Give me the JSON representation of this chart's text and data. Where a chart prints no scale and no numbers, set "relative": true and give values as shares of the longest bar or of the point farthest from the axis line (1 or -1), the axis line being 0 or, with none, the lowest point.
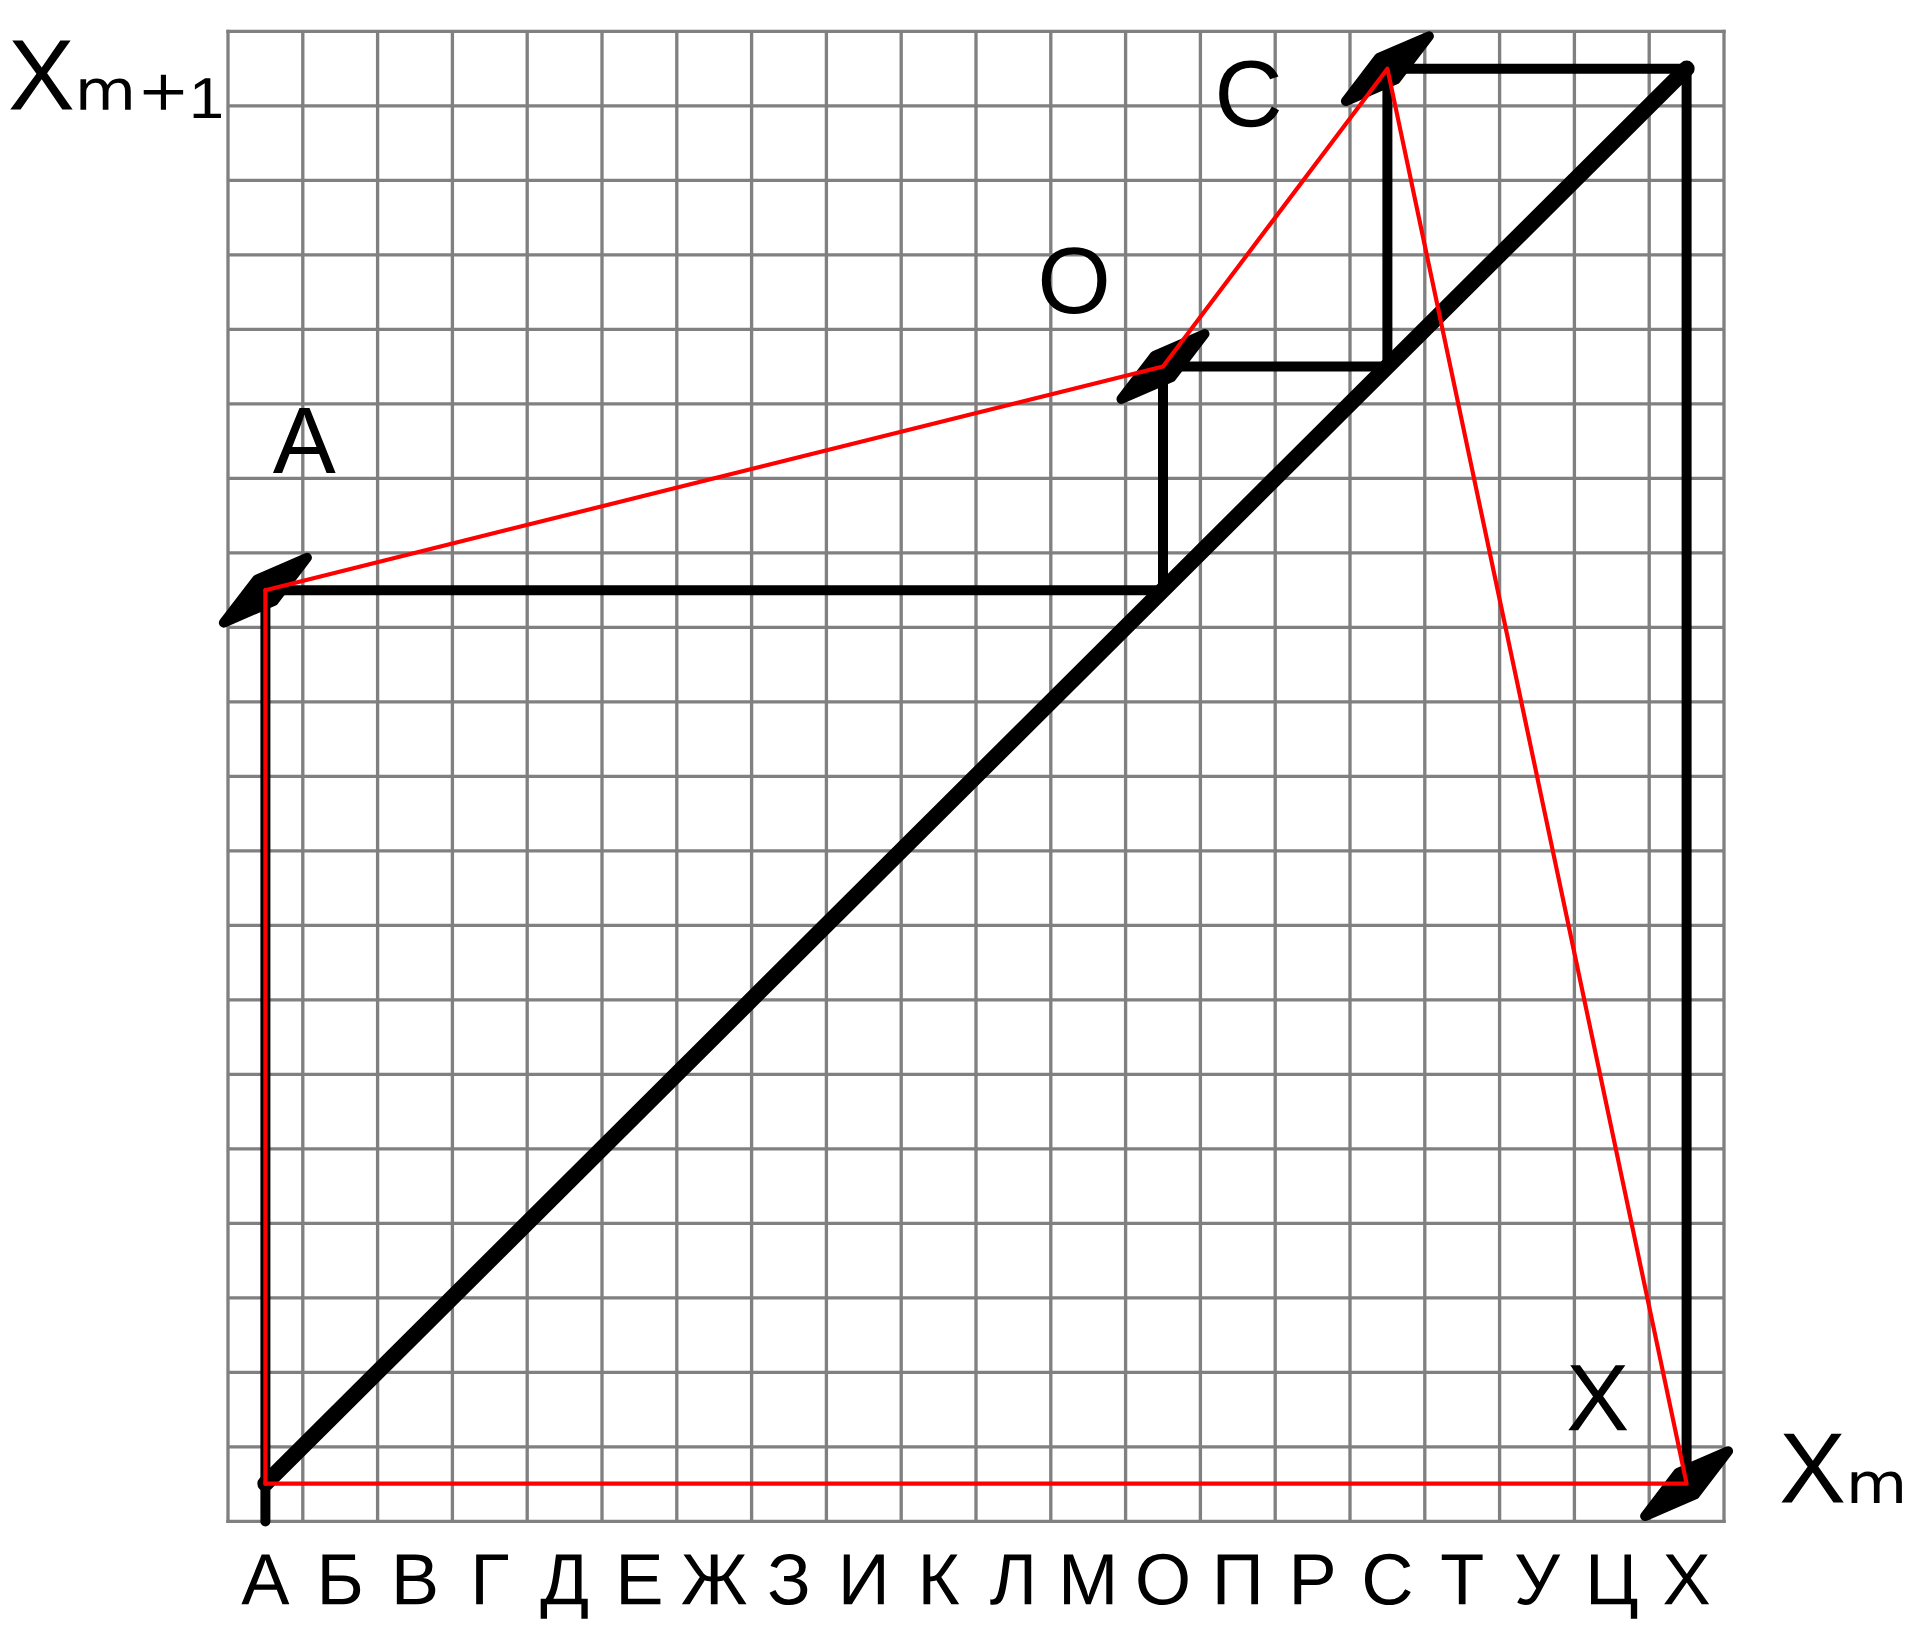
{
  "chart_data": {
    "type": "line",
    "relative": true,
    "xlabel": "Xₘ",
    "ylabel": "Xₘ₊₁",
    "grid": true,
    "categories": [
      "А",
      "Б",
      "В",
      "Г",
      "Д",
      "Е",
      "Ж",
      "З",
      "И",
      "К",
      "Л",
      "М",
      "О",
      "П",
      "Р",
      "С",
      "Т",
      "У",
      "Ц",
      "Х"
    ],
    "series": [
      {
        "color": "#000000",
        "x": [
          "А",
          "Х"
        ],
        "values": [
          0.026,
          1
        ]
      },
      {
        "color": "#000000",
        "x": [
          "А",
          "А",
          "О",
          "О",
          "С",
          "С",
          "Х",
          "Х"
        ],
        "values": [
          0,
          0.641,
          0.641,
          0.795,
          0.795,
          1,
          1,
          0.026
        ]
      },
      {
        "type": "scatter",
        "marker": "diamond",
        "color": "#000000",
        "x": [
          "А",
          "О",
          "С",
          "Х"
        ],
        "values": [
          0.641,
          0.795,
          1,
          0.026
        ]
      },
      {
        "color": "#ff0000",
        "x": [
          "А",
          "О",
          "С",
          "Х",
          "А"
        ],
        "values": [
          0.641,
          0.795,
          1,
          0.026,
          0.026
        ]
      },
      {
        "color": "#ff0000",
        "x": [
          "А",
          "А"
        ],
        "values": [
          0.026,
          0.641
        ]
      }
    ],
    "annotations": [
      {
        "text": "А",
        "x": "А",
        "y": 0.641
      },
      {
        "text": "О",
        "x": "О",
        "y": 0.795
      },
      {
        "text": "С",
        "x": "С",
        "y": 1
      },
      {
        "text": "Х",
        "x": "Х",
        "y": 0.026
      }
    ]
  }
}
